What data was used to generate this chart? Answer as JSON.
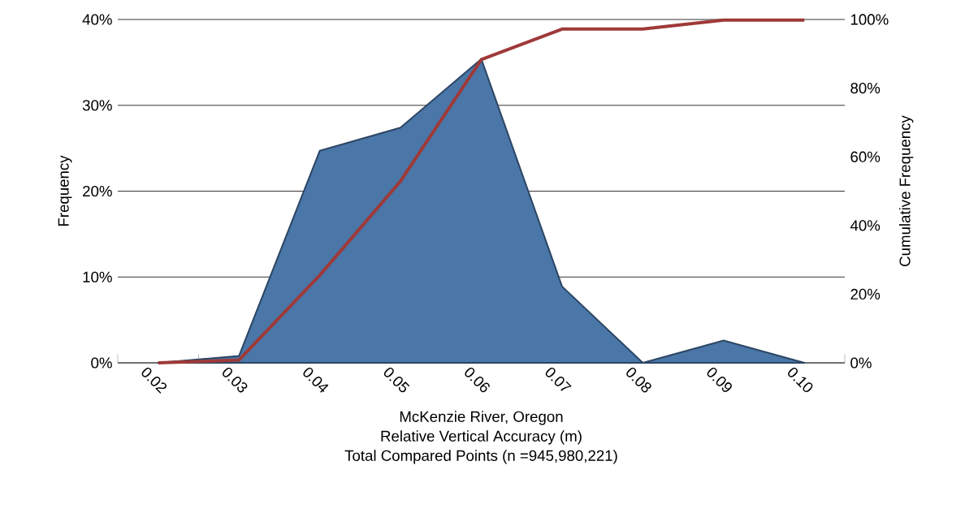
{
  "chart_data": {
    "type": "area",
    "xlabel": "Relative Vertical Accuracy (m)",
    "ylabel": "Frequency",
    "y2label": "Cumulative Frequency",
    "categories": [
      "0.02",
      "0.03",
      "0.04",
      "0.05",
      "0.06",
      "0.07",
      "0.08",
      "0.09",
      "0.10"
    ],
    "series": [
      {
        "name": null,
        "color": "#4a76a8",
        "values": [
          0,
          0.8,
          24.7,
          27.4,
          35.4,
          8.9,
          0,
          2.6,
          0
        ]
      },
      {
        "name": null,
        "type": "line",
        "axis": "y2",
        "color": "#9e3a38",
        "values": [
          0,
          0.8,
          25.5,
          52.9,
          88.3,
          97.2,
          97.2,
          99.8,
          99.8
        ]
      }
    ],
    "ylim": [
      0,
      40
    ],
    "yticks": [
      {
        "value": 0,
        "label": "0%"
      },
      {
        "value": 10,
        "label": "10%"
      },
      {
        "value": 20,
        "label": "20%"
      },
      {
        "value": 30,
        "label": "30%"
      },
      {
        "value": 40,
        "label": "40%"
      }
    ],
    "y2lim": [
      0,
      100
    ],
    "y2ticks": [
      {
        "value": 0,
        "label": "0%"
      },
      {
        "value": 20,
        "label": "20%"
      },
      {
        "value": 40,
        "label": "40%"
      },
      {
        "value": 60,
        "label": "60%"
      },
      {
        "value": 80,
        "label": "80%"
      },
      {
        "value": 100,
        "label": "100%"
      }
    ],
    "grid": "y",
    "annotations": [
      "McKenzie River, Oregon",
      "Total Compared Points (n =945,980,221)"
    ]
  }
}
